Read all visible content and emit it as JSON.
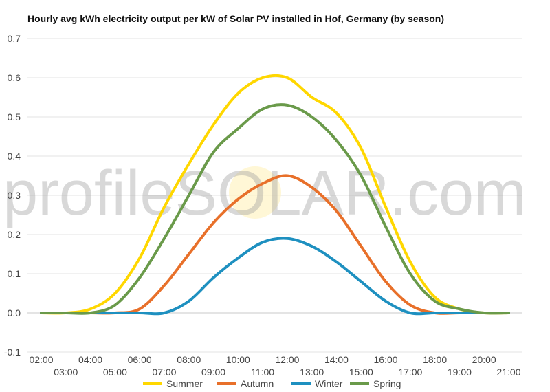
{
  "chart_data": {
    "type": "line",
    "title": "Hourly avg kWh electricity output per kW of Solar PV installed in Hof, Germany (by season)",
    "xlabel": "",
    "ylabel": "",
    "x": [
      "02:00",
      "03:00",
      "04:00",
      "05:00",
      "06:00",
      "07:00",
      "08:00",
      "09:00",
      "10:00",
      "11:00",
      "12:00",
      "13:00",
      "14:00",
      "15:00",
      "16:00",
      "17:00",
      "18:00",
      "19:00",
      "20:00",
      "21:00"
    ],
    "ylim": [
      -0.1,
      0.7
    ],
    "yticks": [
      "-0.1",
      "0.0",
      "0.1",
      "0.2",
      "0.3",
      "0.4",
      "0.5",
      "0.6",
      "0.7"
    ],
    "grid": true,
    "legend": "bottom",
    "series": [
      {
        "name": "Summer",
        "color": "#FFD700",
        "values": [
          0.0,
          0.0,
          0.01,
          0.05,
          0.14,
          0.27,
          0.38,
          0.48,
          0.56,
          0.6,
          0.6,
          0.55,
          0.51,
          0.42,
          0.27,
          0.13,
          0.04,
          0.01,
          0.0,
          0.0
        ]
      },
      {
        "name": "Autumn",
        "color": "#E8702A",
        "values": [
          0.0,
          0.0,
          0.0,
          0.0,
          0.01,
          0.07,
          0.15,
          0.23,
          0.29,
          0.33,
          0.35,
          0.32,
          0.26,
          0.17,
          0.08,
          0.02,
          0.0,
          0.0,
          0.0,
          0.0
        ]
      },
      {
        "name": "Winter",
        "color": "#1E90C0",
        "values": [
          0.0,
          0.0,
          0.0,
          0.0,
          0.0,
          0.0,
          0.03,
          0.09,
          0.14,
          0.18,
          0.19,
          0.17,
          0.13,
          0.08,
          0.03,
          0.0,
          0.0,
          0.0,
          0.0,
          0.0
        ]
      },
      {
        "name": "Spring",
        "color": "#6A9A4A",
        "values": [
          0.0,
          0.0,
          0.0,
          0.02,
          0.09,
          0.19,
          0.3,
          0.41,
          0.47,
          0.52,
          0.53,
          0.5,
          0.44,
          0.35,
          0.22,
          0.1,
          0.03,
          0.01,
          0.0,
          0.0
        ]
      }
    ]
  },
  "watermark": {
    "text": "profileSOLAR.com"
  }
}
